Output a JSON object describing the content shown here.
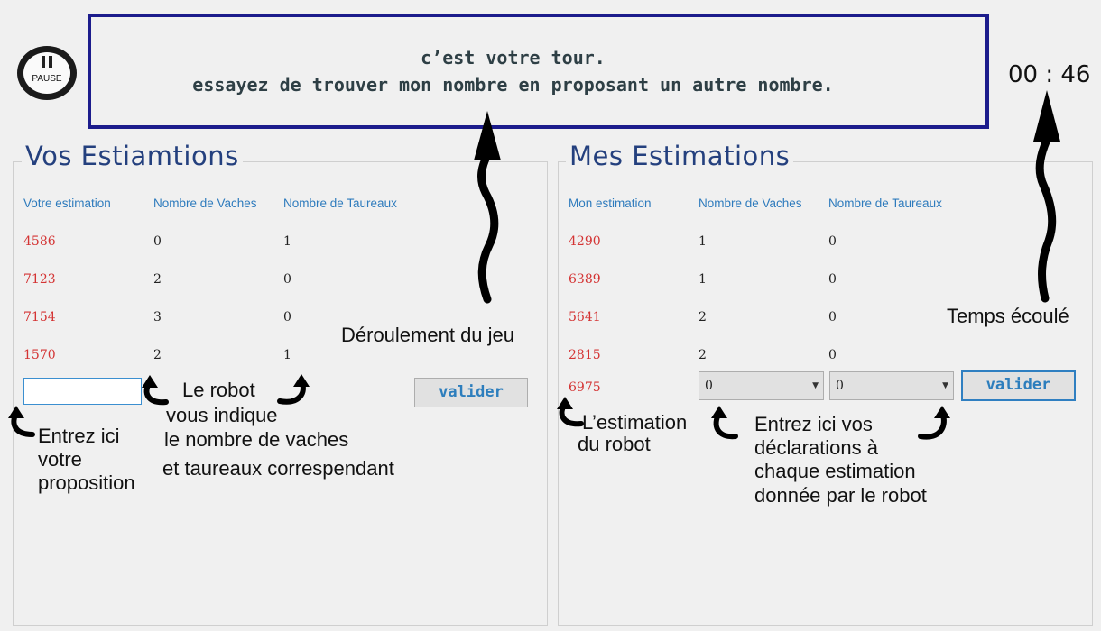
{
  "pause": {
    "label": "PAUSE"
  },
  "message": {
    "line1": "c’est votre tour.",
    "line2": "essayez de trouver mon nombre en proposant un autre nombre."
  },
  "timer": "00 : 46",
  "left": {
    "title": "Vos Estiamtions",
    "headers": [
      "Votre estimation",
      "Nombre de Vaches",
      "Nombre de Taureaux"
    ],
    "rows": [
      {
        "guess": "4586",
        "vaches": "0",
        "taureaux": "1"
      },
      {
        "guess": "7123",
        "vaches": "2",
        "taureaux": "0"
      },
      {
        "guess": "7154",
        "vaches": "3",
        "taureaux": "0"
      },
      {
        "guess": "1570",
        "vaches": "2",
        "taureaux": "1"
      }
    ],
    "input_value": "",
    "button_label": "valider"
  },
  "right": {
    "title": "Mes Estimations",
    "headers": [
      "Mon estimation",
      "Nombre de Vaches",
      "Nombre de Taureaux"
    ],
    "rows": [
      {
        "guess": "4290",
        "vaches": "1",
        "taureaux": "0"
      },
      {
        "guess": "6389",
        "vaches": "1",
        "taureaux": "0"
      },
      {
        "guess": "5641",
        "vaches": "2",
        "taureaux": "0"
      },
      {
        "guess": "2815",
        "vaches": "2",
        "taureaux": "0"
      }
    ],
    "current_guess": "6975",
    "vaches_select": "0",
    "taureaux_select": "0",
    "button_label": "valider"
  },
  "annotations": {
    "deroulement": "Déroulement du jeu",
    "temps": "Temps écoulé",
    "robot_indique": [
      "Le robot",
      "vous indique",
      "le nombre de vaches",
      "et taureaux correspendant"
    ],
    "entrez_proposition": [
      "Entrez ici",
      "votre",
      "proposition"
    ],
    "estimation_robot": [
      "L’estimation",
      "du robot"
    ],
    "entrez_declarations": [
      "Entrez ici vos",
      "déclarations à",
      "chaque estimation",
      "donnée par le robot"
    ]
  },
  "colors": {
    "accent": "#2e7bbd",
    "title": "#24407e",
    "guess": "#d43434",
    "frame": "#1c1c8c"
  }
}
